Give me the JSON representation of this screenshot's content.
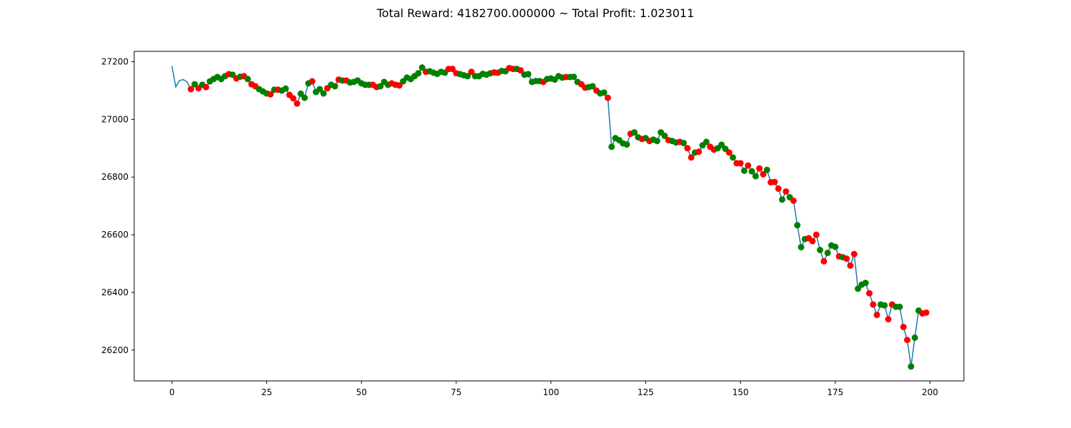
{
  "chart_data": {
    "type": "line",
    "title": "Total Reward: 4182700.000000 ~ Total Profit: 1.023011",
    "xlabel": "",
    "ylabel": "",
    "xlim": [
      -9.95,
      208.95
    ],
    "ylim": [
      26093,
      27236
    ],
    "grid": false,
    "xticks": [
      0,
      25,
      50,
      75,
      100,
      125,
      150,
      175,
      200
    ],
    "yticks": [
      26200,
      26400,
      26600,
      26800,
      27000,
      27200
    ],
    "line_color": "#1f77b4",
    "colors": {
      "red": "#ff0000",
      "green": "#008000"
    },
    "series": [
      {
        "values": [
          27185,
          27113,
          27135,
          27138,
          27130,
          27105,
          27122,
          27108,
          27120,
          27112,
          27132,
          27140,
          27147,
          27140,
          27150,
          27157,
          27155,
          27142,
          27148,
          27150,
          27140,
          27122,
          27115,
          27105,
          27097,
          27090,
          27087,
          27103,
          27103,
          27100,
          27107,
          27085,
          27073,
          27055,
          27089,
          27075,
          27125,
          27132,
          27095,
          27105,
          27090,
          27108,
          27120,
          27115,
          27138,
          27135,
          27135,
          27128,
          27130,
          27135,
          27125,
          27120,
          27120,
          27120,
          27112,
          27115,
          27130,
          27120,
          27125,
          27120,
          27118,
          27132,
          27145,
          27140,
          27150,
          27160,
          27180,
          27165,
          27167,
          27162,
          27158,
          27165,
          27162,
          27175,
          27175,
          27160,
          27157,
          27153,
          27150,
          27165,
          27150,
          27150,
          27158,
          27155,
          27160,
          27163,
          27162,
          27168,
          27167,
          27178,
          27175,
          27175,
          27170,
          27155,
          27157,
          27130,
          27133,
          27133,
          27130,
          27140,
          27142,
          27138,
          27150,
          27145,
          27147,
          27147,
          27148,
          27130,
          27122,
          27110,
          27112,
          27115,
          27100,
          27090,
          27093,
          27075,
          26905,
          26935,
          26928,
          26917,
          26913,
          26950,
          26955,
          26938,
          26932,
          26935,
          26925,
          26930,
          26925,
          26955,
          26943,
          26928,
          26925,
          26920,
          26922,
          26918,
          26900,
          26868,
          26885,
          26888,
          26910,
          26922,
          26905,
          26895,
          26900,
          26912,
          26898,
          26885,
          26868,
          26848,
          26848,
          26822,
          26840,
          26820,
          26803,
          26830,
          26810,
          26825,
          26782,
          26783,
          26760,
          26722,
          26750,
          26730,
          26718,
          26633,
          26557,
          26585,
          26588,
          26578,
          26600,
          26547,
          26508,
          26537,
          26563,
          26558,
          26525,
          26522,
          26517,
          26493,
          26533,
          26413,
          26427,
          26433,
          26397,
          26358,
          26322,
          26358,
          26355,
          26307,
          26358,
          26350,
          26350,
          26280,
          26235,
          26143,
          26243,
          26337,
          26327,
          26330
        ],
        "markers": [
          null,
          null,
          null,
          null,
          null,
          "red",
          "green",
          "red",
          "green",
          "red",
          "green",
          "green",
          "green",
          "green",
          "green",
          "red",
          "green",
          "red",
          "green",
          "red",
          "green",
          "red",
          "red",
          "green",
          "green",
          "green",
          "red",
          "green",
          "red",
          "green",
          "green",
          "red",
          "red",
          "red",
          "green",
          "green",
          "green",
          "red",
          "green",
          "green",
          "green",
          "red",
          "green",
          "green",
          "red",
          "green",
          "red",
          "green",
          "green",
          "green",
          "green",
          "green",
          "green",
          "red",
          "red",
          "green",
          "green",
          "green",
          "red",
          "red",
          "red",
          "green",
          "green",
          "green",
          "green",
          "green",
          "green",
          "red",
          "green",
          "green",
          "green",
          "green",
          "green",
          "red",
          "red",
          "red",
          "green",
          "green",
          "green",
          "red",
          "green",
          "green",
          "green",
          "green",
          "green",
          "red",
          "red",
          "green",
          "green",
          "red",
          "red",
          "green",
          "red",
          "green",
          "green",
          "green",
          "green",
          "green",
          "red",
          "green",
          "green",
          "green",
          "green",
          "green",
          "red",
          "green",
          "green",
          "green",
          "red",
          "red",
          "green",
          "green",
          "red",
          "green",
          "green",
          "red",
          "green",
          "green",
          "green",
          "green",
          "green",
          "red",
          "green",
          "green",
          "red",
          "green",
          "red",
          "green",
          "green",
          "green",
          "green",
          "red",
          "green",
          "green",
          "red",
          "green",
          "red",
          "red",
          "green",
          "red",
          "green",
          "green",
          "red",
          "red",
          "green",
          "green",
          "green",
          "red",
          "green",
          "red",
          "red",
          "green",
          "red",
          "green",
          "green",
          "red",
          "red",
          "green",
          "red",
          "red",
          "red",
          "green",
          "red",
          "green",
          "red",
          "green",
          "green",
          "green",
          "red",
          "red",
          "red",
          "green",
          "red",
          "green",
          "green",
          "green",
          "red",
          "green",
          "red",
          "red",
          "red",
          "green",
          "green",
          "green",
          "red",
          "red",
          "red",
          "green",
          "green",
          "red",
          "red",
          "green",
          "green",
          "red",
          "red",
          "green",
          "green",
          "green",
          "red",
          "red"
        ]
      }
    ]
  }
}
